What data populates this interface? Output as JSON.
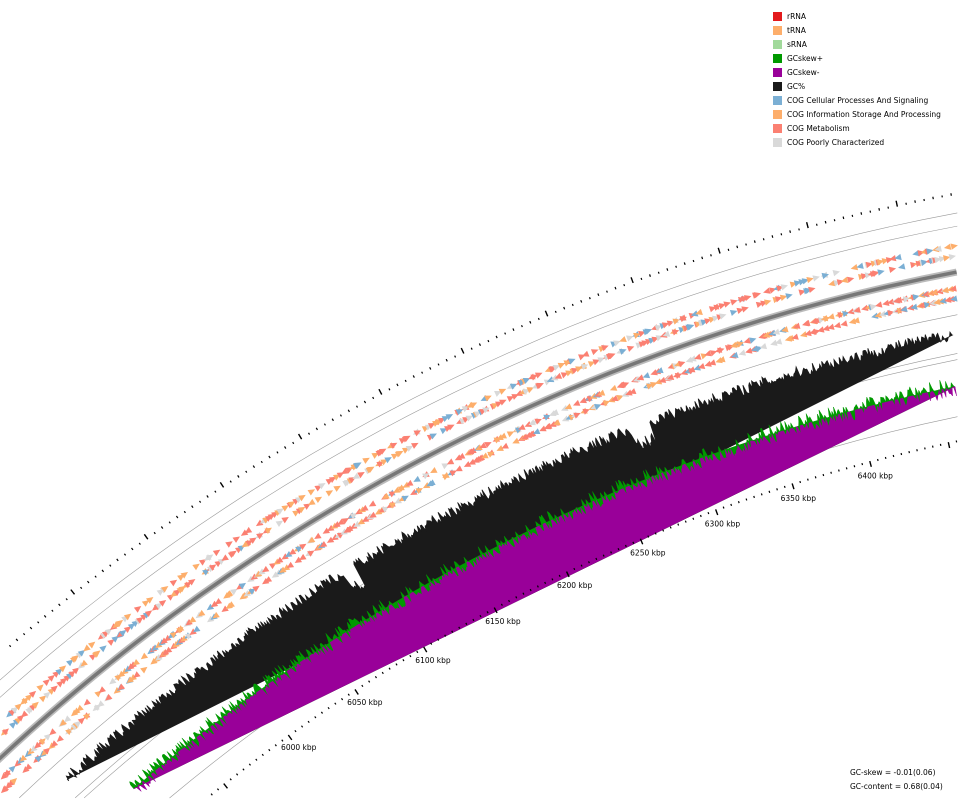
{
  "legend": [
    {
      "label": "rRNA",
      "color": "#e31a1c"
    },
    {
      "label": "tRNA",
      "color": "#fdae6b"
    },
    {
      "label": "sRNA",
      "color": "#a1d99b"
    },
    {
      "label": "GCskew+",
      "color": "#009900"
    },
    {
      "label": "GCskew-",
      "color": "#990099"
    },
    {
      "label": "GC%",
      "color": "#1a1a1a"
    },
    {
      "label": "COG Cellular Processes And Signaling",
      "color": "#7bafd4"
    },
    {
      "label": "COG Information Storage And Processing",
      "color": "#fdae6b"
    },
    {
      "label": "COG Metabolism",
      "color": "#fb8072"
    },
    {
      "label": "COG Poorly Characterized",
      "color": "#d9d9d9"
    }
  ],
  "scale_labels": [
    {
      "kbp": 6000,
      "label": "6000 kbp"
    },
    {
      "kbp": 6050,
      "label": "6050 kbp"
    },
    {
      "kbp": 6100,
      "label": "6100 kbp"
    },
    {
      "kbp": 6150,
      "label": "6150 kbp"
    },
    {
      "kbp": 6200,
      "label": "6200 kbp"
    },
    {
      "kbp": 6250,
      "label": "6250 kbp"
    },
    {
      "kbp": 6300,
      "label": "6300 kbp"
    },
    {
      "kbp": 6350,
      "label": "6350 kbp"
    },
    {
      "kbp": 6400,
      "label": "6400 kbp"
    }
  ],
  "stats": {
    "gc_skew": "GC-skew = -0.01(0.06)",
    "gc_content": "GC-content = 0.68(0.04)"
  }
}
